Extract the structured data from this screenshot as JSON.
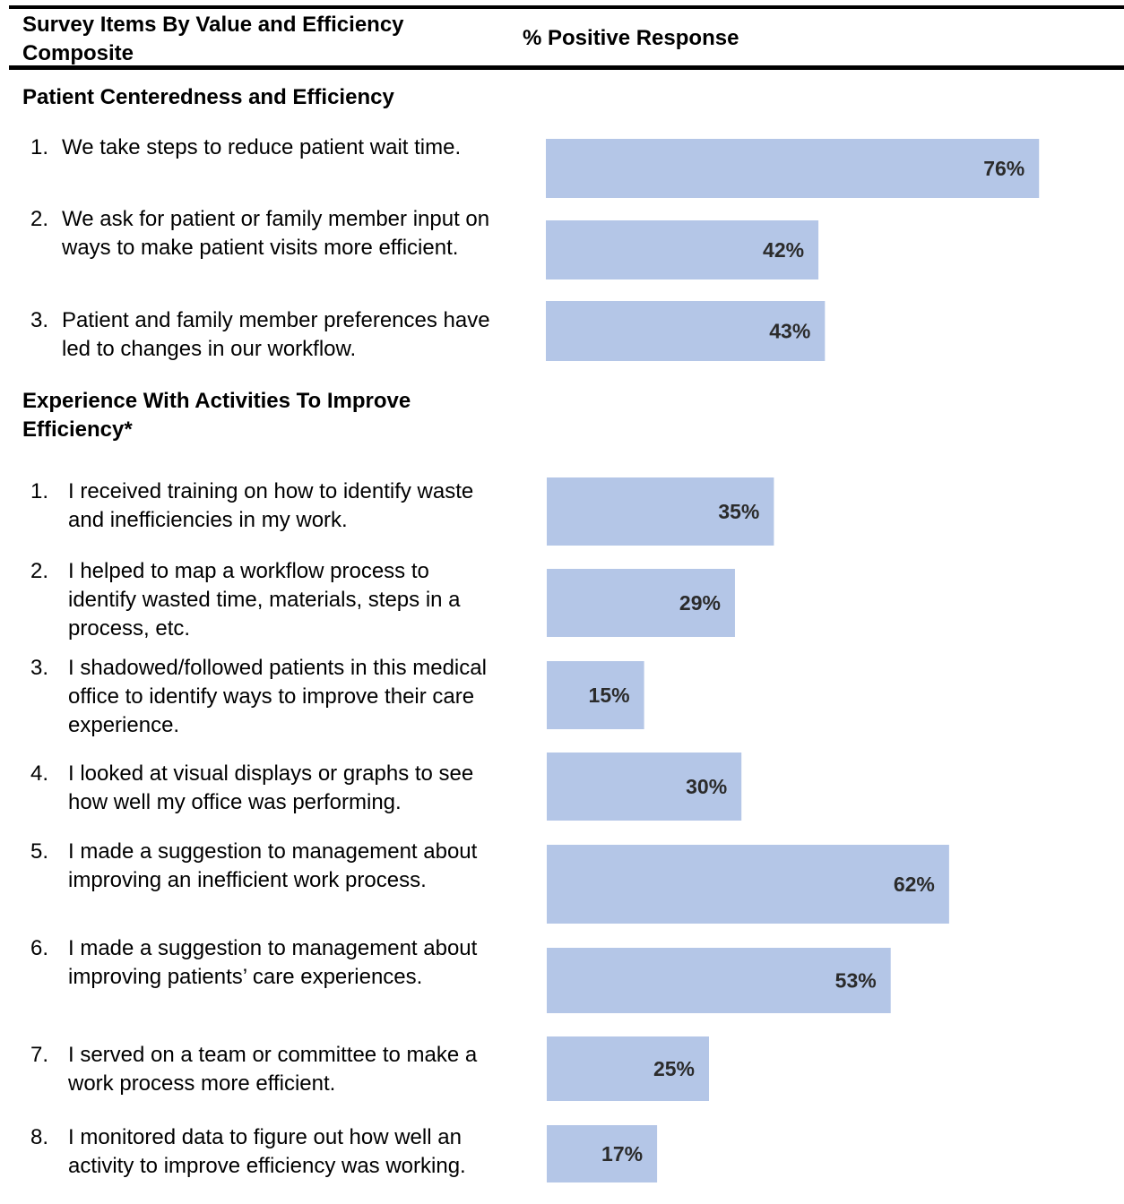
{
  "header": {
    "col1": "Survey Items By Value and Efficiency Composite",
    "col2": "% Positive Response"
  },
  "colors": {
    "bar": "#b4c6e7",
    "label": "#2b2b2b",
    "rule": "#000000"
  },
  "chart_data": {
    "type": "bar",
    "orientation": "horizontal",
    "ylabel": "% Positive Response",
    "xlim": [
      0,
      100
    ],
    "grid": false,
    "groups": [
      {
        "title": "Patient Centeredness and Efficiency",
        "items": [
          {
            "num": "1.",
            "text": "We take steps to reduce patient wait time.",
            "value": 76,
            "label": "76%"
          },
          {
            "num": "2.",
            "text": "We ask for patient or family member input on ways to make patient visits more efficient.",
            "value": 42,
            "label": "42%"
          },
          {
            "num": "3.",
            "text": "Patient and family member preferences have led to changes in our workflow.",
            "value": 43,
            "label": "43%"
          }
        ]
      },
      {
        "title": "Experience With Activities To Improve Efficiency*",
        "items": [
          {
            "num": "1.",
            "text": "I received training on how to identify waste and inefficiencies in my work.",
            "value": 35,
            "label": "35%"
          },
          {
            "num": "2.",
            "text": "I helped to map a workflow process to identify wasted time, materials, steps in a process, etc.",
            "value": 29,
            "label": "29%"
          },
          {
            "num": "3.",
            "text": "I shadowed/followed patients in this medical office to identify ways to improve their care experience.",
            "value": 15,
            "label": "15%"
          },
          {
            "num": "4.",
            "text": "I looked at visual displays or graphs to see how well my office was performing.",
            "value": 30,
            "label": "30%"
          },
          {
            "num": "5.",
            "text": "I made a suggestion to management about improving an inefficient work process.",
            "value": 62,
            "label": "62%"
          },
          {
            "num": "6.",
            "text": "I made a suggestion to management about improving patients’ care experiences.",
            "value": 53,
            "label": "53%"
          },
          {
            "num": "7.",
            "text": "I served on a team or committee to make a work process more efficient.",
            "value": 25,
            "label": "25%"
          },
          {
            "num": "8.",
            "text": "I monitored data to figure out how well an activity to improve efficiency was working.",
            "value": 17,
            "label": "17%"
          }
        ]
      }
    ]
  }
}
